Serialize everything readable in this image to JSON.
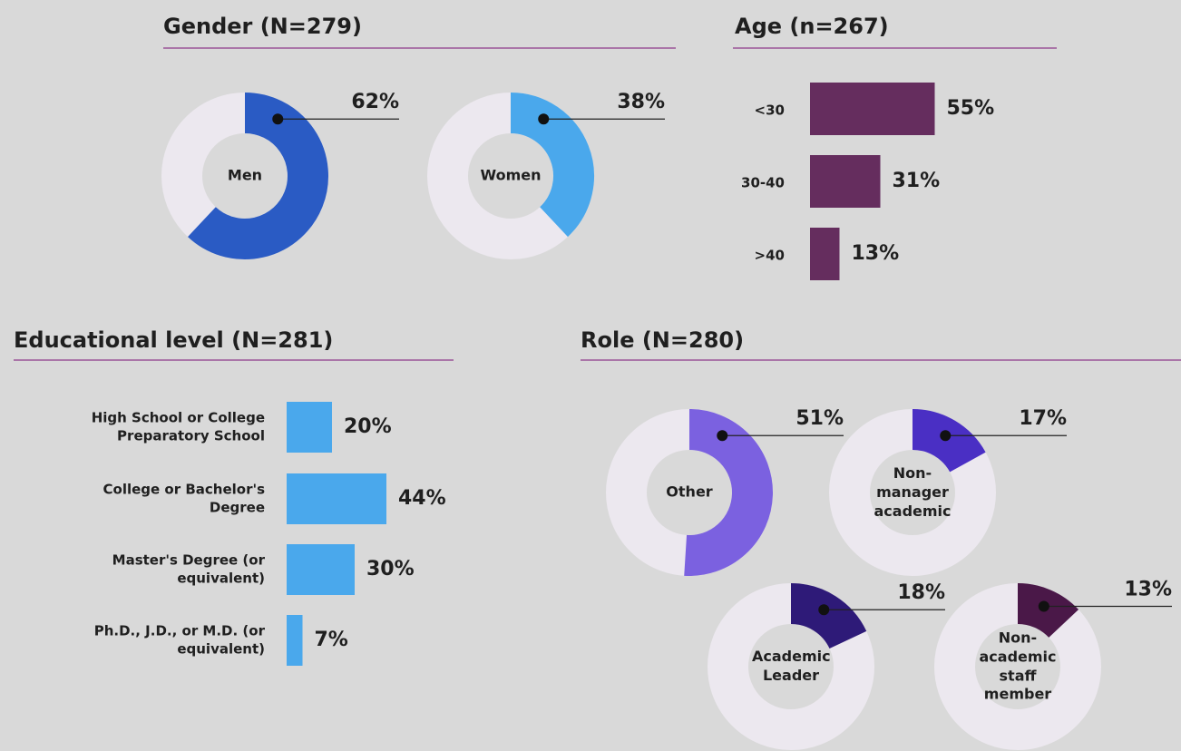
{
  "chart_data": [
    {
      "type": "donut",
      "title": "Gender (N=279)",
      "categories": [
        "Men",
        "Women"
      ],
      "values": [
        62,
        38
      ],
      "value_labels": [
        "62%",
        "38%"
      ],
      "colors": [
        "#2a5bc4",
        "#4aa8ec"
      ],
      "track_color": "#ece8ef"
    },
    {
      "type": "bar",
      "orientation": "horizontal",
      "title": "Age (n=267)",
      "categories": [
        "<30",
        "30-40",
        ">40"
      ],
      "values": [
        55,
        31,
        13
      ],
      "value_labels": [
        "55%",
        "31%",
        "13%"
      ],
      "color": "#652d5e"
    },
    {
      "type": "bar",
      "orientation": "horizontal",
      "title": "Educational level (N=281)",
      "categories": [
        "High School or College Preparatory School",
        "College or Bachelor's Degree",
        "Master's Degree (or equivalent)",
        "Ph.D., J.D., or M.D. (or equivalent)"
      ],
      "values": [
        20,
        44,
        30,
        7
      ],
      "value_labels": [
        "20%",
        "44%",
        "30%",
        "7%"
      ],
      "color": "#4aa8ec"
    },
    {
      "type": "donut",
      "title": "Role (N=280)",
      "categories": [
        "Other",
        "Non-manager academic",
        "Academic Leader",
        "Non-academic staff member"
      ],
      "values": [
        51,
        17,
        18,
        13
      ],
      "value_labels": [
        "51%",
        "17%",
        "18%",
        "13%"
      ],
      "colors": [
        "#7b61e0",
        "#4a2fc4",
        "#2e1a78",
        "#4a1848"
      ],
      "track_color": "#ece8ef"
    }
  ]
}
